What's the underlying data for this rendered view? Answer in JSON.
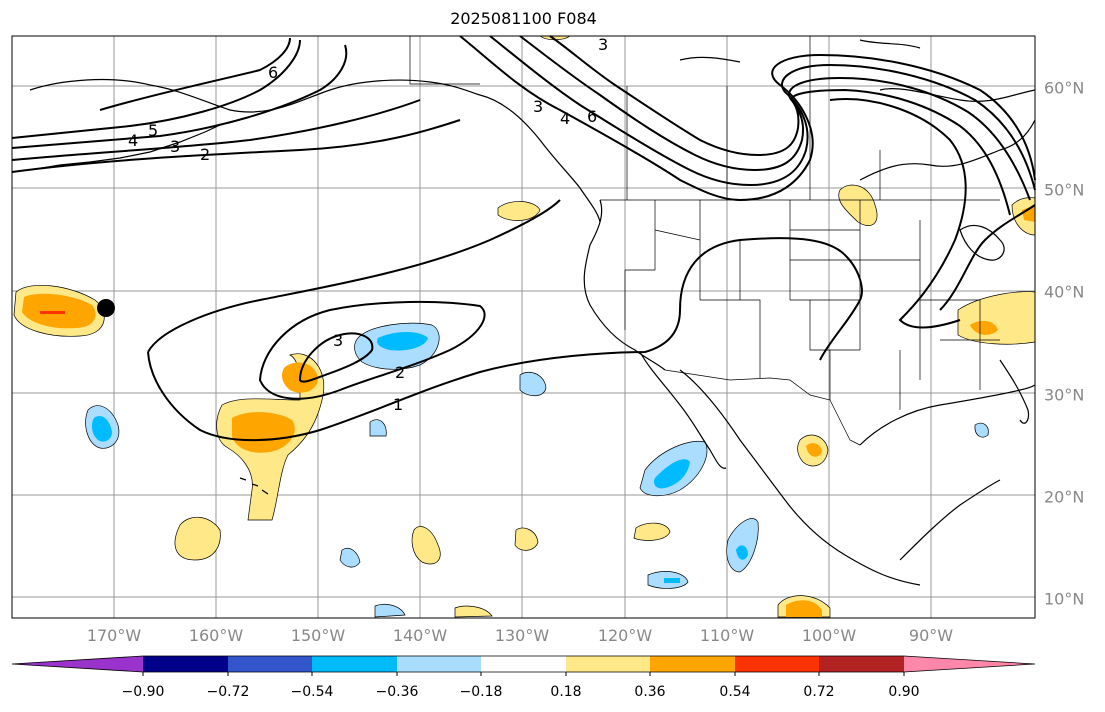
{
  "title": "2025081100 F084",
  "lon_labels": [
    "170°W",
    "160°W",
    "150°W",
    "140°W",
    "130°W",
    "120°W",
    "110°W",
    "100°W",
    "90°W"
  ],
  "lat_labels": [
    "60°N",
    "50°N",
    "40°N",
    "30°N",
    "20°N",
    "10°N"
  ],
  "colorbar": {
    "ticks": [
      "−0.90",
      "−0.72",
      "−0.54",
      "−0.36",
      "−0.18",
      "0.18",
      "0.36",
      "0.54",
      "0.72",
      "0.90"
    ],
    "colors": [
      "#9933cc",
      "#000088",
      "#3355cc",
      "#00bbff",
      "#aaddff",
      "#ffffff",
      "#ffe888",
      "#ffa500",
      "#ff3300",
      "#b22222",
      "#ff88aa"
    ]
  },
  "contour_labels": [
    "6",
    "5",
    "4",
    "3",
    "2",
    "3",
    "4",
    "6",
    "3",
    "3",
    "2",
    "1"
  ],
  "fill_colors": {
    "light_yellow": "#ffe888",
    "orange": "#ffa500",
    "red": "#ff3300",
    "light_blue": "#aaddff",
    "blue": "#00bbff"
  }
}
